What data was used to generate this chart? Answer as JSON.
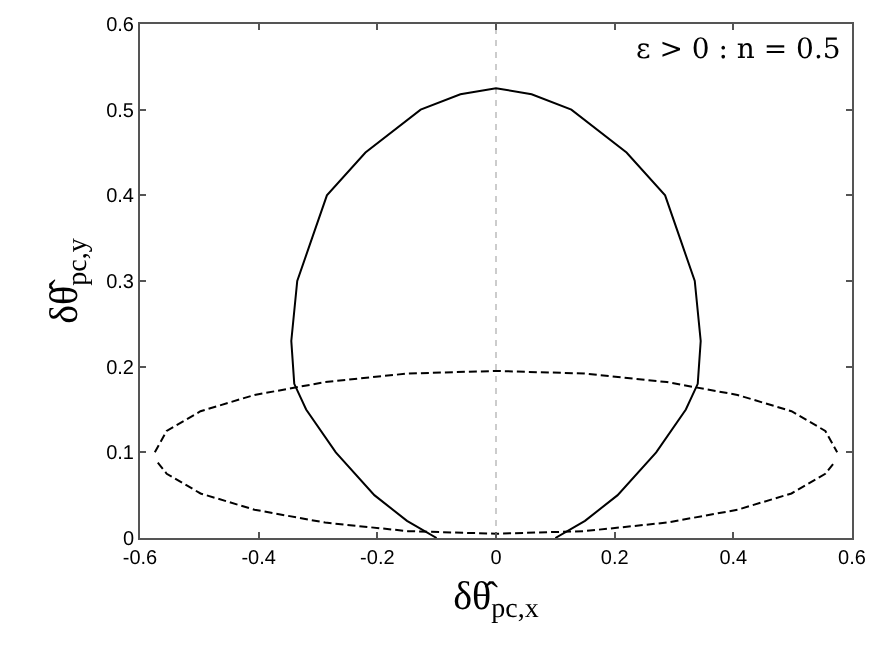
{
  "chart_data": {
    "type": "line",
    "xlabel": "δθ̂$_{pc,x}$",
    "ylabel": "δθ̂$_{pc,y}$",
    "xlim": [
      -0.6,
      0.6
    ],
    "xticks": [
      -0.6,
      -0.4,
      -0.2,
      0,
      0.2,
      0.4,
      0.6
    ],
    "ylim": [
      0,
      0.6
    ],
    "yticks": [
      0,
      0.1,
      0.2,
      0.3,
      0.4,
      0.5,
      0.6
    ],
    "marker": "none",
    "annotations": [
      "ε > 0 : n = 0.5"
    ],
    "ref_lines": [
      {
        "axis": "x",
        "value": 0,
        "color": "#cccccc",
        "line_style": "dotted"
      }
    ],
    "series": [
      {
        "color": "#000000",
        "line_style": "solid",
        "x": [
          -0.1,
          -0.15,
          -0.205,
          -0.27,
          -0.32,
          -0.34,
          -0.345,
          -0.335,
          -0.31,
          -0.285,
          -0.22,
          -0.127,
          -0.06,
          0,
          0.06,
          0.127,
          0.22,
          0.285,
          0.31,
          0.335,
          0.345,
          0.34,
          0.32,
          0.27,
          0.205,
          0.15,
          0.1
        ],
        "values": [
          0,
          0.02,
          0.05,
          0.1,
          0.15,
          0.18,
          0.23,
          0.3,
          0.35,
          0.4,
          0.45,
          0.5,
          0.518,
          0.525,
          0.518,
          0.5,
          0.45,
          0.4,
          0.35,
          0.3,
          0.23,
          0.18,
          0.15,
          0.1,
          0.05,
          0.02,
          0
        ]
      },
      {
        "color": "#000000",
        "line_style": "dashed",
        "x": [
          -0.575,
          -0.555,
          -0.498,
          -0.407,
          -0.288,
          -0.149,
          0,
          0.149,
          0.288,
          0.407,
          0.498,
          0.555,
          0.575
        ],
        "values": [
          0.1,
          0.125,
          0.148,
          0.167,
          0.182,
          0.192,
          0.195,
          0.192,
          0.182,
          0.167,
          0.148,
          0.125,
          0.1
        ]
      },
      {
        "color": "#000000",
        "line_style": "dashed",
        "x": [
          -0.57,
          -0.555,
          -0.498,
          -0.407,
          -0.288,
          -0.149,
          0,
          0.149,
          0.288,
          0.407,
          0.498,
          0.555,
          0.57
        ],
        "values": [
          0.088,
          0.075,
          0.052,
          0.033,
          0.018,
          0.008,
          0.005,
          0.008,
          0.018,
          0.033,
          0.052,
          0.075,
          0.088
        ]
      }
    ]
  }
}
